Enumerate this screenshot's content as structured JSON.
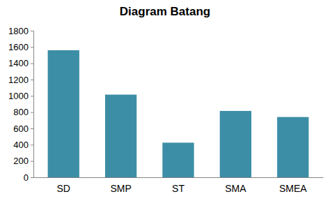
{
  "chart_data": {
    "type": "bar",
    "title": "Diagram Batang",
    "categories": [
      "SD",
      "SMP",
      "ST",
      "SMA",
      "SMEA"
    ],
    "values": [
      1560,
      1015,
      425,
      815,
      740
    ],
    "color": "#3b8ea5",
    "ylim": [
      0,
      1800
    ],
    "yticks": [
      0,
      200,
      400,
      600,
      800,
      1000,
      1200,
      1400,
      1600,
      1800
    ],
    "grid": false
  }
}
